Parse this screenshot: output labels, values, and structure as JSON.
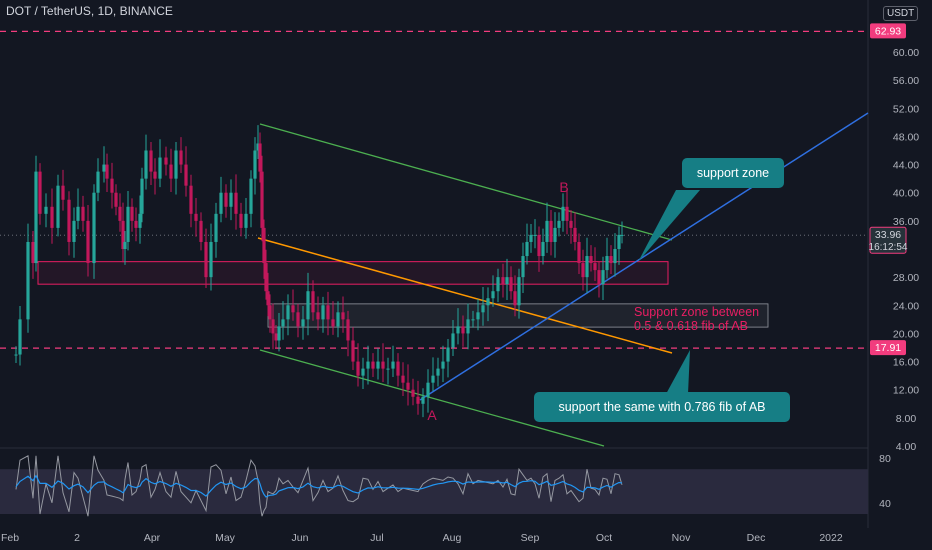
{
  "header": {
    "symbol_line": "DOT / TetherUS, 1D, BINANCE"
  },
  "price_axis": {
    "unit": "USDT"
  },
  "colors": {
    "background": "#131722",
    "candle_up": "#26a69a",
    "candle_down": "#c2185b",
    "dashed_level": "#f23c7e",
    "channel": "#4caf50",
    "trendline": "#2f6fe0",
    "fib_line": "#ff9800",
    "zone_border": "#e91e63",
    "callout_bg": "#167e85",
    "rsi_band": "#2a2a3e"
  },
  "chart_data": {
    "type": "candlestick",
    "y_ticks": [
      "60.00",
      "56.00",
      "52.00",
      "48.00",
      "44.00",
      "40.00",
      "36.00",
      "28.00",
      "24.00",
      "20.00",
      "16.00",
      "12.00",
      "8.00",
      "4.00"
    ],
    "x_ticks": [
      "Feb",
      "2",
      "Apr",
      "May",
      "Jun",
      "Jul",
      "Aug",
      "Sep",
      "Oct",
      "Nov",
      "Dec",
      "2022"
    ],
    "price_tags": [
      {
        "label": "62.93",
        "value": 62.93
      },
      {
        "label": "33.96",
        "value": 33.96,
        "sub": "16:12:54"
      },
      {
        "label": "17.91",
        "value": 17.91
      }
    ],
    "annotations": {
      "point_a": "A",
      "point_b": "B",
      "support_zone_text": "Support zone between\n0.5 & 0.618 fib of AB",
      "callout_top": "support zone",
      "callout_bottom": "support the same with 0.786 fib of AB"
    },
    "rsi": {
      "ticks": [
        "80",
        "40"
      ],
      "band": [
        30,
        70
      ]
    },
    "price_path": [
      [
        16,
        17
      ],
      [
        20,
        22
      ],
      [
        28,
        33
      ],
      [
        33,
        30
      ],
      [
        36,
        43
      ],
      [
        40,
        37
      ],
      [
        46,
        38
      ],
      [
        52,
        35
      ],
      [
        58,
        41
      ],
      [
        63,
        39
      ],
      [
        69,
        33
      ],
      [
        74,
        36
      ],
      [
        78,
        38
      ],
      [
        83,
        36
      ],
      [
        88,
        30
      ],
      [
        94,
        40
      ],
      [
        98,
        43
      ],
      [
        104,
        44
      ],
      [
        107,
        42
      ],
      [
        112,
        40
      ],
      [
        116,
        38
      ],
      [
        120,
        36
      ],
      [
        123,
        32
      ],
      [
        125,
        33
      ],
      [
        128,
        38
      ],
      [
        132,
        36
      ],
      [
        136,
        35
      ],
      [
        140,
        37
      ],
      [
        142,
        42
      ],
      [
        146,
        46
      ],
      [
        151,
        43
      ],
      [
        155,
        42
      ],
      [
        160,
        45
      ],
      [
        166,
        44
      ],
      [
        171,
        42
      ],
      [
        176,
        46
      ],
      [
        181,
        44
      ],
      [
        186,
        41
      ],
      [
        191,
        37
      ],
      [
        196,
        36
      ],
      [
        201,
        33
      ],
      [
        206,
        28
      ],
      [
        211,
        33
      ],
      [
        216,
        37
      ],
      [
        221,
        40
      ],
      [
        226,
        38
      ],
      [
        231,
        40
      ],
      [
        236,
        37
      ],
      [
        241,
        35
      ],
      [
        246,
        37
      ],
      [
        251,
        42
      ],
      [
        255,
        46
      ],
      [
        258,
        47
      ],
      [
        260,
        43
      ],
      [
        262,
        35
      ],
      [
        264,
        30
      ],
      [
        266,
        26
      ],
      [
        268,
        24
      ],
      [
        270,
        22
      ],
      [
        273,
        20
      ],
      [
        276,
        19
      ],
      [
        279,
        21
      ],
      [
        283,
        22
      ],
      [
        288,
        24
      ],
      [
        293,
        23
      ],
      [
        298,
        21
      ],
      [
        303,
        22
      ],
      [
        308,
        26
      ],
      [
        313,
        23
      ],
      [
        318,
        22
      ],
      [
        323,
        24
      ],
      [
        328,
        22
      ],
      [
        333,
        21
      ],
      [
        338,
        23
      ],
      [
        343,
        22
      ],
      [
        348,
        19
      ],
      [
        353,
        16
      ],
      [
        358,
        14
      ],
      [
        363,
        15
      ],
      [
        368,
        16
      ],
      [
        373,
        15
      ],
      [
        378,
        16
      ],
      [
        383,
        15
      ],
      [
        388,
        15
      ],
      [
        393,
        16
      ],
      [
        398,
        14
      ],
      [
        403,
        13
      ],
      [
        408,
        12
      ],
      [
        413,
        11
      ],
      [
        418,
        10
      ],
      [
        423,
        11
      ],
      [
        428,
        13
      ],
      [
        433,
        14
      ],
      [
        438,
        15
      ],
      [
        443,
        16
      ],
      [
        448,
        18
      ],
      [
        453,
        20
      ],
      [
        458,
        21
      ],
      [
        463,
        20
      ],
      [
        468,
        22
      ],
      [
        473,
        22
      ],
      [
        478,
        23
      ],
      [
        483,
        24
      ],
      [
        488,
        25
      ],
      [
        493,
        26
      ],
      [
        498,
        28
      ],
      [
        503,
        27
      ],
      [
        507,
        28
      ],
      [
        511,
        26
      ],
      [
        515,
        24
      ],
      [
        519,
        28
      ],
      [
        523,
        31
      ],
      [
        527,
        33
      ],
      [
        531,
        34
      ],
      [
        535,
        34
      ],
      [
        539,
        31
      ],
      [
        543,
        33
      ],
      [
        547,
        36
      ],
      [
        551,
        33
      ],
      [
        555,
        35
      ],
      [
        559,
        36
      ],
      [
        563,
        38
      ],
      [
        567,
        36
      ],
      [
        571,
        35
      ],
      [
        575,
        33
      ],
      [
        579,
        30
      ],
      [
        583,
        28
      ],
      [
        587,
        31
      ],
      [
        591,
        30
      ],
      [
        595,
        29
      ],
      [
        599,
        27
      ],
      [
        603,
        29
      ],
      [
        607,
        31
      ],
      [
        611,
        30
      ],
      [
        615,
        32
      ],
      [
        619,
        34
      ],
      [
        622,
        34
      ]
    ]
  }
}
